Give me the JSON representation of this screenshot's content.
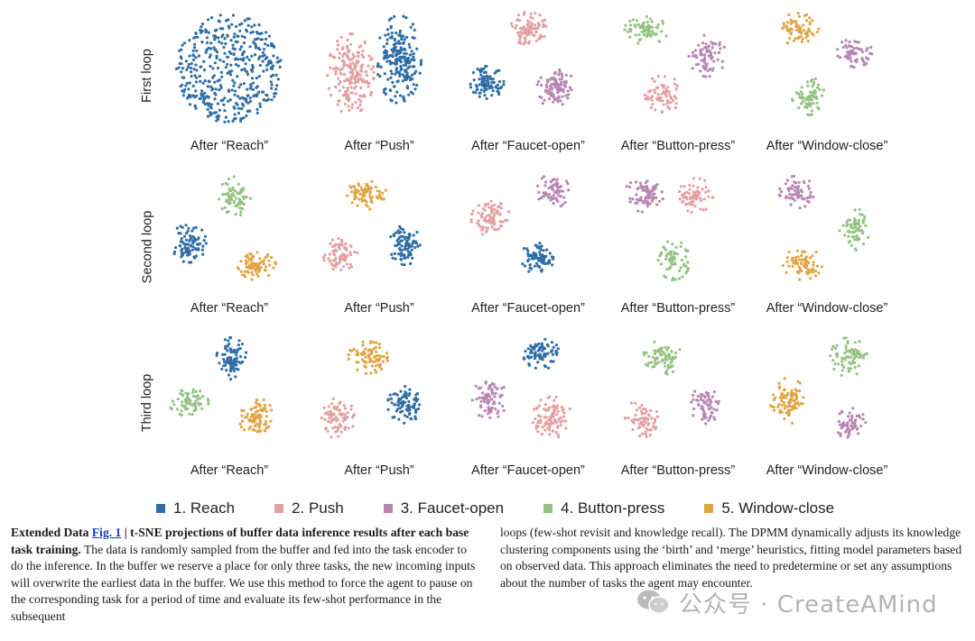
{
  "colors": {
    "reach": "#2f6ea5",
    "push": "#e3a0a3",
    "faucet": "#b886b3",
    "button": "#94c283",
    "window": "#e0a544"
  },
  "chart_data": {
    "type": "scatter",
    "rows": [
      "First loop",
      "Second loop",
      "Third loop"
    ],
    "columns": [
      "After “Reach”",
      "After “Push”",
      "After “Faucet-open”",
      "After “Button-press”",
      "After “Window-close”"
    ],
    "legend": [
      {
        "label": "1. Reach",
        "key": "reach"
      },
      {
        "label": "2. Push",
        "key": "push"
      },
      {
        "label": "3. Faucet-open",
        "key": "faucet"
      },
      {
        "label": "4. Button-press",
        "key": "button"
      },
      {
        "label": "5. Window-close",
        "key": "window"
      }
    ],
    "legend_placement": "bottom",
    "grid": false,
    "panels": [
      [
        {
          "clusters": [
            {
              "task": "reach",
              "cx": 0.5,
              "cy": 0.5,
              "rx": 0.46,
              "ry": 0.47,
              "n": 420
            }
          ]
        },
        {
          "clusters": [
            {
              "task": "push",
              "cx": 0.3,
              "cy": 0.55,
              "rx": 0.2,
              "ry": 0.35,
              "n": 200
            },
            {
              "task": "reach",
              "cx": 0.72,
              "cy": 0.42,
              "rx": 0.19,
              "ry": 0.38,
              "n": 210
            }
          ]
        },
        {
          "clusters": [
            {
              "task": "push",
              "cx": 0.52,
              "cy": 0.15,
              "rx": 0.17,
              "ry": 0.14,
              "n": 90
            },
            {
              "task": "reach",
              "cx": 0.17,
              "cy": 0.62,
              "rx": 0.15,
              "ry": 0.14,
              "n": 95
            },
            {
              "task": "faucet",
              "cx": 0.77,
              "cy": 0.68,
              "rx": 0.17,
              "ry": 0.17,
              "n": 95
            }
          ]
        },
        {
          "clusters": [
            {
              "task": "button",
              "cx": 0.24,
              "cy": 0.17,
              "rx": 0.19,
              "ry": 0.12,
              "n": 70
            },
            {
              "task": "faucet",
              "cx": 0.77,
              "cy": 0.39,
              "rx": 0.16,
              "ry": 0.18,
              "n": 75
            },
            {
              "task": "push",
              "cx": 0.39,
              "cy": 0.72,
              "rx": 0.16,
              "ry": 0.16,
              "n": 70
            }
          ]
        },
        {
          "clusters": [
            {
              "task": "window",
              "cx": 0.28,
              "cy": 0.16,
              "rx": 0.18,
              "ry": 0.14,
              "n": 70
            },
            {
              "task": "faucet",
              "cx": 0.77,
              "cy": 0.36,
              "rx": 0.15,
              "ry": 0.13,
              "n": 65
            },
            {
              "task": "button",
              "cx": 0.38,
              "cy": 0.74,
              "rx": 0.15,
              "ry": 0.16,
              "n": 65
            }
          ]
        }
      ],
      [
        {
          "clusters": [
            {
              "task": "button",
              "cx": 0.55,
              "cy": 0.22,
              "rx": 0.14,
              "ry": 0.17,
              "n": 75
            },
            {
              "task": "reach",
              "cx": 0.15,
              "cy": 0.62,
              "rx": 0.15,
              "ry": 0.17,
              "n": 85
            },
            {
              "task": "window",
              "cx": 0.73,
              "cy": 0.82,
              "rx": 0.17,
              "ry": 0.12,
              "n": 75
            }
          ]
        },
        {
          "clusters": [
            {
              "task": "window",
              "cx": 0.44,
              "cy": 0.2,
              "rx": 0.17,
              "ry": 0.13,
              "n": 75
            },
            {
              "task": "push",
              "cx": 0.21,
              "cy": 0.72,
              "rx": 0.15,
              "ry": 0.14,
              "n": 75
            },
            {
              "task": "reach",
              "cx": 0.77,
              "cy": 0.64,
              "rx": 0.14,
              "ry": 0.17,
              "n": 85
            }
          ]
        },
        {
          "clusters": [
            {
              "task": "faucet",
              "cx": 0.74,
              "cy": 0.17,
              "rx": 0.14,
              "ry": 0.15,
              "n": 65
            },
            {
              "task": "push",
              "cx": 0.2,
              "cy": 0.41,
              "rx": 0.17,
              "ry": 0.15,
              "n": 80
            },
            {
              "task": "reach",
              "cx": 0.6,
              "cy": 0.76,
              "rx": 0.14,
              "ry": 0.15,
              "n": 80
            }
          ]
        },
        {
          "clusters": [
            {
              "task": "faucet",
              "cx": 0.22,
              "cy": 0.2,
              "rx": 0.18,
              "ry": 0.15,
              "n": 75
            },
            {
              "task": "push",
              "cx": 0.67,
              "cy": 0.21,
              "rx": 0.15,
              "ry": 0.15,
              "n": 70
            },
            {
              "task": "button",
              "cx": 0.48,
              "cy": 0.77,
              "rx": 0.14,
              "ry": 0.17,
              "n": 70
            }
          ]
        },
        {
          "clusters": [
            {
              "task": "faucet",
              "cx": 0.27,
              "cy": 0.18,
              "rx": 0.15,
              "ry": 0.14,
              "n": 65
            },
            {
              "task": "button",
              "cx": 0.77,
              "cy": 0.5,
              "rx": 0.13,
              "ry": 0.18,
              "n": 65
            },
            {
              "task": "window",
              "cx": 0.32,
              "cy": 0.8,
              "rx": 0.17,
              "ry": 0.14,
              "n": 70
            }
          ]
        }
      ],
      [
        {
          "clusters": [
            {
              "task": "reach",
              "cx": 0.52,
              "cy": 0.2,
              "rx": 0.13,
              "ry": 0.18,
              "n": 80
            },
            {
              "task": "button",
              "cx": 0.15,
              "cy": 0.58,
              "rx": 0.17,
              "ry": 0.12,
              "n": 70
            },
            {
              "task": "window",
              "cx": 0.73,
              "cy": 0.7,
              "rx": 0.15,
              "ry": 0.16,
              "n": 80
            }
          ]
        },
        {
          "clusters": [
            {
              "task": "window",
              "cx": 0.45,
              "cy": 0.19,
              "rx": 0.17,
              "ry": 0.14,
              "n": 75
            },
            {
              "task": "push",
              "cx": 0.2,
              "cy": 0.72,
              "rx": 0.15,
              "ry": 0.18,
              "n": 75
            },
            {
              "task": "reach",
              "cx": 0.77,
              "cy": 0.6,
              "rx": 0.15,
              "ry": 0.16,
              "n": 85
            }
          ]
        },
        {
          "clusters": [
            {
              "task": "reach",
              "cx": 0.64,
              "cy": 0.16,
              "rx": 0.16,
              "ry": 0.13,
              "n": 80
            },
            {
              "task": "faucet",
              "cx": 0.19,
              "cy": 0.55,
              "rx": 0.15,
              "ry": 0.18,
              "n": 80
            },
            {
              "task": "push",
              "cx": 0.73,
              "cy": 0.71,
              "rx": 0.17,
              "ry": 0.18,
              "n": 90
            }
          ]
        },
        {
          "clusters": [
            {
              "task": "button",
              "cx": 0.38,
              "cy": 0.19,
              "rx": 0.17,
              "ry": 0.15,
              "n": 70
            },
            {
              "task": "push",
              "cx": 0.2,
              "cy": 0.72,
              "rx": 0.14,
              "ry": 0.17,
              "n": 65
            },
            {
              "task": "faucet",
              "cx": 0.75,
              "cy": 0.6,
              "rx": 0.12,
              "ry": 0.18,
              "n": 65
            }
          ]
        },
        {
          "clusters": [
            {
              "task": "button",
              "cx": 0.72,
              "cy": 0.19,
              "rx": 0.16,
              "ry": 0.17,
              "n": 70
            },
            {
              "task": "window",
              "cx": 0.2,
              "cy": 0.57,
              "rx": 0.16,
              "ry": 0.2,
              "n": 80
            },
            {
              "task": "faucet",
              "cx": 0.74,
              "cy": 0.77,
              "rx": 0.13,
              "ry": 0.14,
              "n": 60
            }
          ]
        }
      ]
    ]
  },
  "caption": {
    "lead": "Extended Data ",
    "fig_ref": "Fig. 1",
    "sep": " | ",
    "title": "t-SNE projections of buffer data inference results after each base task training.",
    "body_left": " The data is randomly sampled from the buffer and fed into the task encoder to do the inference. In the buffer we reserve a place for only three tasks, the new incoming inputs will overwrite the earliest data in the buffer. We use this method to force the agent to pause on the corresponding task for a period of time and evaluate its few-shot performance in the subsequent",
    "body_right": "loops (few-shot revisit and knowledge recall). The DPMM dynamically adjusts its knowledge clustering components using the ‘birth’ and ‘merge’ heuristics, fitting model parameters based on observed data. This approach eliminates the need to predetermine or set any assumptions about the number of tasks the agent may encounter."
  },
  "watermark": {
    "text": "公众号 · CreateAMind",
    "icon": "wechat-icon"
  }
}
